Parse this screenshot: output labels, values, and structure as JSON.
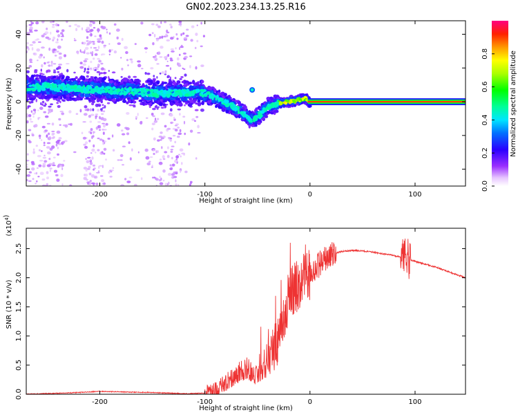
{
  "figure": {
    "title": "GN02.2023.234.13.25.R16"
  },
  "chart_data": [
    {
      "type": "heatmap",
      "xlabel": "Height of straight line (km)",
      "ylabel": "Frequency (Hz)",
      "xlim": [
        -270,
        148
      ],
      "ylim": [
        -50,
        48
      ],
      "xticks": [
        -200,
        -100,
        0,
        100
      ],
      "yticks": [
        -40,
        -20,
        0,
        20,
        40
      ],
      "grid": false,
      "colorbar": {
        "label": "Normalized spectral amplitude",
        "range": [
          0.0,
          1.0
        ],
        "ticks": [
          0.0,
          0.2,
          0.4,
          0.6,
          0.8
        ]
      },
      "ridge": {
        "height_km": [
          -270,
          -250,
          -230,
          -200,
          -170,
          -140,
          -120,
          -100,
          -85,
          -70,
          -55,
          -48,
          -40,
          -30,
          -20,
          -10,
          -5,
          0,
          50,
          100,
          148
        ],
        "frequency_hz": [
          8,
          9,
          8,
          7,
          6,
          5,
          5,
          5,
          1,
          -4,
          -11,
          -8,
          -3,
          -1,
          0,
          1,
          2,
          0,
          0,
          0,
          0
        ]
      },
      "isolated_blob": {
        "height_km": -55,
        "frequency_hz": 7
      }
    },
    {
      "type": "line",
      "xlabel": "Height of straight line (km)",
      "ylabel": "SNR (10 * v/v)",
      "y_multiplier": "(x10",
      "y_multiplier_exponent": "4",
      "xlim": [
        -270,
        148
      ],
      "ylim": [
        0.0,
        2.85
      ],
      "xticks": [
        -200,
        -100,
        0,
        100
      ],
      "yticks": [
        0.0,
        0.5,
        1.0,
        1.5,
        2.0,
        2.5
      ],
      "line_color": "#ee3333",
      "series": [
        {
          "x": [
            -270,
            -220,
            -200,
            -180,
            -150,
            -120,
            -100,
            -90,
            -80,
            -70,
            -60,
            -50,
            -40,
            -30,
            -25,
            -20,
            -10,
            0,
            10,
            20,
            30,
            40,
            50,
            60,
            80,
            90,
            100,
            120,
            148
          ],
          "y": [
            0.0,
            0.03,
            0.05,
            0.04,
            0.03,
            0.01,
            0.02,
            0.08,
            0.2,
            0.35,
            0.45,
            0.3,
            0.5,
            1.0,
            1.3,
            1.7,
            1.9,
            2.05,
            2.25,
            2.4,
            2.45,
            2.47,
            2.46,
            2.44,
            2.38,
            2.34,
            2.28,
            2.18,
            2.0
          ]
        }
      ]
    }
  ]
}
